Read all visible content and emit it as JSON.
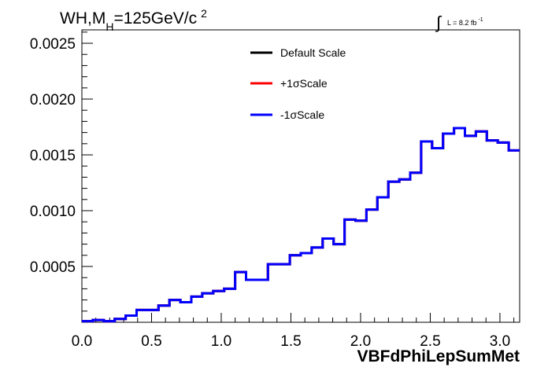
{
  "chart_data": {
    "type": "line",
    "drawstyle": "histogram-step",
    "title": {
      "prefix": "WH,M",
      "subscript": "H",
      "value": "=125GeV/c",
      "superscript": "2"
    },
    "lumi": {
      "integral": "∫",
      "text": "L = 8.2 fb",
      "superscript": "-1"
    },
    "xlabel": "VBFdPhiLepSumMet",
    "ylabel": "",
    "xlim": [
      0.0,
      3.1416
    ],
    "ylim": [
      0.0,
      0.00262
    ],
    "x_ticks": [
      {
        "value": 0.0,
        "label": "0.0"
      },
      {
        "value": 0.5,
        "label": "0.5"
      },
      {
        "value": 1.0,
        "label": "1.0"
      },
      {
        "value": 1.5,
        "label": "1.5"
      },
      {
        "value": 2.0,
        "label": "2.0"
      },
      {
        "value": 2.5,
        "label": "2.5"
      },
      {
        "value": 3.0,
        "label": "3.0"
      }
    ],
    "y_ticks": [
      {
        "value": 0.0005,
        "label": "0.0005"
      },
      {
        "value": 0.001,
        "label": "0.0010"
      },
      {
        "value": 0.0015,
        "label": "0.0015"
      },
      {
        "value": 0.002,
        "label": "0.0020"
      },
      {
        "value": 0.0025,
        "label": "0.0025"
      }
    ],
    "bin_edges": [
      0.0,
      0.0785,
      0.1571,
      0.2356,
      0.3142,
      0.3927,
      0.4712,
      0.5498,
      0.6283,
      0.7069,
      0.7854,
      0.8639,
      0.9425,
      1.021,
      1.0996,
      1.1781,
      1.2566,
      1.3352,
      1.4137,
      1.4923,
      1.5708,
      1.6493,
      1.7279,
      1.8064,
      1.885,
      1.9635,
      2.042,
      2.1206,
      2.1991,
      2.2777,
      2.3562,
      2.4347,
      2.5133,
      2.5918,
      2.6704,
      2.7489,
      2.8274,
      2.906,
      2.9845,
      3.0631,
      3.1416
    ],
    "series": [
      {
        "name": "Default Scale",
        "color": "#000000",
        "values": [
          1e-05,
          2e-05,
          1e-05,
          3e-05,
          6e-05,
          0.00011,
          0.00011,
          0.00015,
          0.0002,
          0.00018,
          0.00023,
          0.00026,
          0.00028,
          0.0003,
          0.00045,
          0.00038,
          0.00038,
          0.00052,
          0.00052,
          0.0006,
          0.00062,
          0.00067,
          0.00075,
          0.0007,
          0.00092,
          0.00091,
          0.00101,
          0.00112,
          0.00126,
          0.00128,
          0.00134,
          0.00162,
          0.00156,
          0.00169,
          0.00174,
          0.00167,
          0.00171,
          0.00163,
          0.00161,
          0.00154,
          0.00165
        ]
      },
      {
        "name": "+1σScale",
        "color": "#ff0000",
        "values": [
          1e-05,
          2e-05,
          1e-05,
          3e-05,
          6e-05,
          0.00011,
          0.00011,
          0.00015,
          0.0002,
          0.00018,
          0.00023,
          0.00026,
          0.00028,
          0.0003,
          0.00045,
          0.00038,
          0.00038,
          0.00052,
          0.00052,
          0.0006,
          0.00062,
          0.00067,
          0.00075,
          0.0007,
          0.00092,
          0.00091,
          0.00101,
          0.00112,
          0.00126,
          0.00128,
          0.00134,
          0.00162,
          0.00156,
          0.00169,
          0.00174,
          0.00167,
          0.00171,
          0.00163,
          0.00161,
          0.00154,
          0.00165
        ]
      },
      {
        "name": "-1σScale",
        "color": "#0000ff",
        "values": [
          1e-05,
          2e-05,
          1e-05,
          3e-05,
          6e-05,
          0.00011,
          0.00011,
          0.00015,
          0.0002,
          0.00018,
          0.00023,
          0.00026,
          0.00028,
          0.0003,
          0.00045,
          0.00038,
          0.00038,
          0.00052,
          0.00052,
          0.0006,
          0.00062,
          0.00067,
          0.00075,
          0.0007,
          0.00092,
          0.00091,
          0.00101,
          0.00112,
          0.00126,
          0.00128,
          0.00134,
          0.00162,
          0.00156,
          0.00169,
          0.00174,
          0.00167,
          0.00171,
          0.00163,
          0.00161,
          0.00154,
          0.00165
        ]
      }
    ],
    "legend_position": "top-center",
    "grid": false
  }
}
